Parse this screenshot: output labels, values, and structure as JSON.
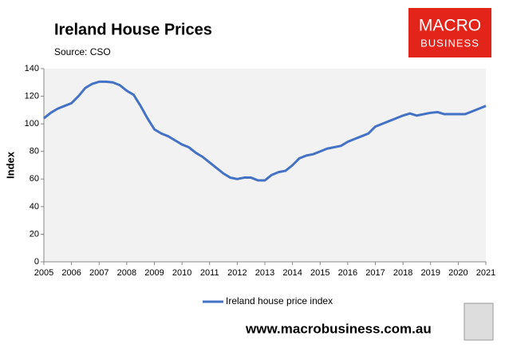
{
  "chart_data": {
    "type": "line",
    "title": "Ireland House Prices",
    "subtitle": "Source: CSO",
    "y_label": "Index",
    "x": [
      2005.0,
      2005.25,
      2005.5,
      2005.75,
      2006.0,
      2006.25,
      2006.5,
      2006.75,
      2007.0,
      2007.25,
      2007.5,
      2007.75,
      2008.0,
      2008.25,
      2008.5,
      2008.75,
      2009.0,
      2009.25,
      2009.5,
      2009.75,
      2010.0,
      2010.25,
      2010.5,
      2010.75,
      2011.0,
      2011.25,
      2011.5,
      2011.75,
      2012.0,
      2012.25,
      2012.5,
      2012.75,
      2013.0,
      2013.25,
      2013.5,
      2013.75,
      2014.0,
      2014.25,
      2014.5,
      2014.75,
      2015.0,
      2015.25,
      2015.5,
      2015.75,
      2016.0,
      2016.25,
      2016.5,
      2016.75,
      2017.0,
      2017.25,
      2017.5,
      2017.75,
      2018.0,
      2018.25,
      2018.5,
      2018.75,
      2019.0,
      2019.25,
      2019.5,
      2019.75,
      2020.0,
      2020.25,
      2020.5,
      2020.75,
      2021.0
    ],
    "series": [
      {
        "name": "Ireland house price index",
        "color": "#4472c4",
        "values": [
          104,
          108,
          111,
          113,
          115,
          120,
          126,
          129,
          130.5,
          130.5,
          130,
          128,
          124,
          121,
          113,
          104,
          96,
          93,
          91,
          88,
          85,
          83,
          79,
          76,
          72,
          68,
          64,
          61,
          60,
          61,
          61,
          59,
          59,
          63,
          65,
          66,
          70,
          75,
          77,
          78,
          80,
          82,
          83,
          84,
          87,
          89,
          91,
          93,
          98,
          100,
          102,
          104,
          106,
          107.5,
          106,
          107,
          108,
          108.5,
          107,
          107,
          107,
          107,
          109,
          111,
          113
        ]
      }
    ],
    "xlim": [
      2005,
      2021
    ],
    "xticks": [
      2005,
      2006,
      2007,
      2008,
      2009,
      2010,
      2011,
      2012,
      2013,
      2014,
      2015,
      2016,
      2017,
      2018,
      2019,
      2020,
      2021
    ],
    "ylim": [
      0,
      140
    ],
    "yticks": [
      0,
      20,
      40,
      60,
      80,
      100,
      120,
      140
    ],
    "grid": false,
    "legend": "bottom"
  },
  "brand": {
    "logo_top": "MACRO",
    "logo_bottom": "BUSINESS",
    "url": "www.macrobusiness.com.au"
  }
}
